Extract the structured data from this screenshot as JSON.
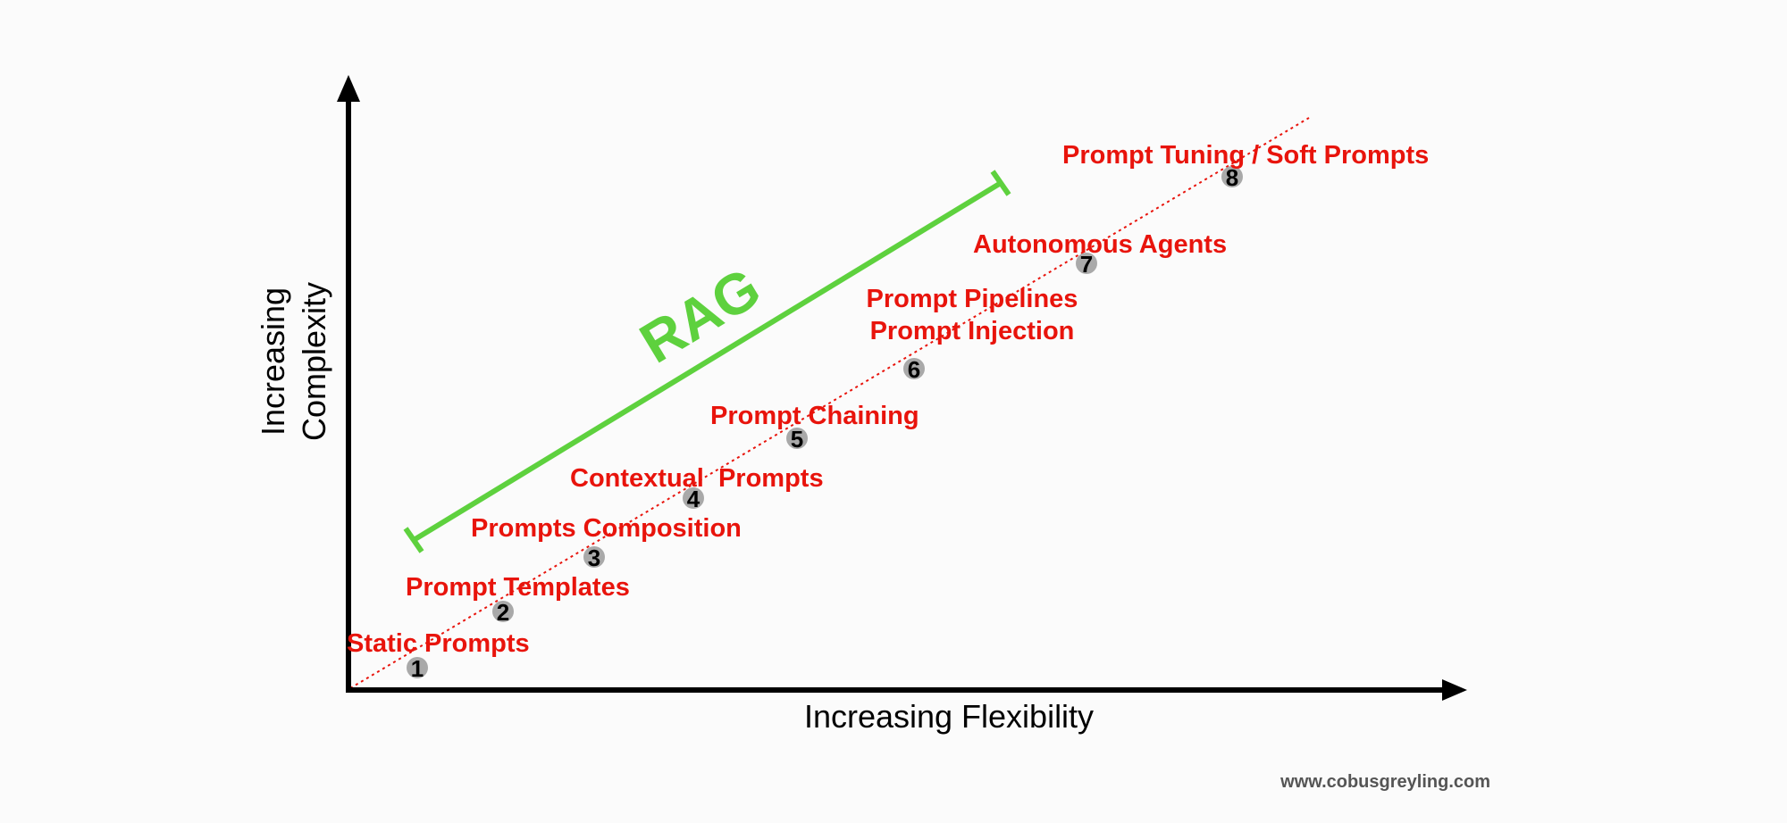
{
  "axes": {
    "x_label": "Increasing Flexibility",
    "y_label_line1": "Increasing",
    "y_label_line2": "Complexity"
  },
  "colors": {
    "axis": "#000000",
    "trend_line": "#e8140c",
    "label": "#e8140c",
    "marker_fill": "#a9a9a9",
    "rag": "#5ed13e",
    "background": "#fbfbfb"
  },
  "rag": {
    "label": "RAG"
  },
  "steps": [
    {
      "number": "1",
      "label": "Static Prompts"
    },
    {
      "number": "2",
      "label": "Prompt Templates"
    },
    {
      "number": "3",
      "label": "Prompts Composition"
    },
    {
      "number": "4",
      "label": "Contextual  Prompts"
    },
    {
      "number": "5",
      "label": "Prompt Chaining"
    },
    {
      "number": "6",
      "label_line1": "Prompt Pipelines",
      "label_line2": "Prompt Injection"
    },
    {
      "number": "7",
      "label": "Autonomous Agents"
    },
    {
      "number": "8",
      "label": "Prompt Tuning / Soft Prompts"
    }
  ],
  "footer": {
    "url": "www.cobusgreyling.com"
  }
}
